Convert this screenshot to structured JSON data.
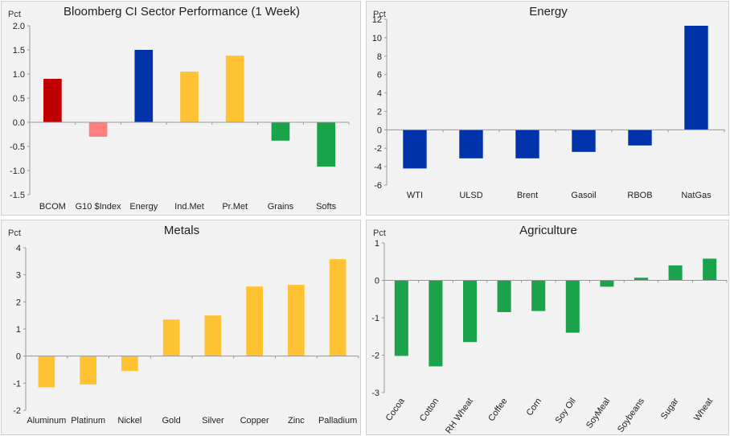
{
  "chart_data": [
    {
      "type": "bar",
      "title": "Bloomberg CI Sector Performance (1 Week)",
      "unit_label": "Pct",
      "ylim": [
        -1.5,
        2.0
      ],
      "yticks": [
        "2.0",
        "1.5",
        "1.0",
        "0.5",
        "0.0",
        "-0.5",
        "-1.0",
        "-1.5"
      ],
      "categories": [
        "BCOM",
        "G10 $Index",
        "Energy",
        "Ind.Met",
        "Pr.Met",
        "Grains",
        "Softs"
      ],
      "values": [
        0.9,
        -0.3,
        1.5,
        1.05,
        1.38,
        -0.38,
        -0.92
      ],
      "colors": [
        "#c00000",
        "#ff8080",
        "#0033aa",
        "#ffc233",
        "#ffc233",
        "#1aa34a",
        "#1aa34a"
      ],
      "grid": false,
      "legend": "none"
    },
    {
      "type": "bar",
      "title": "Energy",
      "unit_label": "Pct",
      "ylim": [
        -6,
        12
      ],
      "yticks": [
        "12",
        "10",
        "8",
        "6",
        "4",
        "2",
        "0",
        "-2",
        "-4",
        "-6"
      ],
      "categories": [
        "WTI",
        "ULSD",
        "Brent",
        "Gasoil",
        "RBOB",
        "NatGas"
      ],
      "values": [
        -4.2,
        -3.1,
        -3.1,
        -2.4,
        -1.7,
        11.3
      ],
      "colors": [
        "#0033aa",
        "#0033aa",
        "#0033aa",
        "#0033aa",
        "#0033aa",
        "#0033aa"
      ],
      "grid": false,
      "legend": "none"
    },
    {
      "type": "bar",
      "title": "Metals",
      "unit_label": "Pct",
      "ylim": [
        -2,
        4
      ],
      "yticks": [
        "4",
        "3",
        "2",
        "1",
        "0",
        "-1",
        "-2"
      ],
      "categories": [
        "Aluminum",
        "Platinum",
        "Nickel",
        "Gold",
        "Silver",
        "Copper",
        "Zinc",
        "Palladium"
      ],
      "values": [
        -1.15,
        -1.05,
        -0.55,
        1.35,
        1.5,
        2.57,
        2.63,
        3.58
      ],
      "colors": [
        "#ffc233",
        "#ffc233",
        "#ffc233",
        "#ffc233",
        "#ffc233",
        "#ffc233",
        "#ffc233",
        "#ffc233"
      ],
      "grid": false,
      "legend": "none"
    },
    {
      "type": "bar",
      "title": "Agriculture",
      "unit_label": "Pct",
      "ylim": [
        -3,
        1
      ],
      "yticks": [
        "1",
        "0",
        "-1",
        "-2",
        "-3"
      ],
      "categories": [
        "Cocoa",
        "Cotton",
        "RH Wheat",
        "Coffee",
        "Corn",
        "Soy Oil",
        "SoyMeal",
        "Soybeans",
        "Sugar",
        "Wheat"
      ],
      "values": [
        -2.02,
        -2.3,
        -1.65,
        -0.85,
        -0.82,
        -1.4,
        -0.17,
        0.07,
        0.4,
        0.58
      ],
      "colors": [
        "#1aa34a",
        "#1aa34a",
        "#1aa34a",
        "#1aa34a",
        "#1aa34a",
        "#1aa34a",
        "#1aa34a",
        "#1aa34a",
        "#1aa34a",
        "#1aa34a"
      ],
      "grid": false,
      "legend": "none"
    }
  ]
}
